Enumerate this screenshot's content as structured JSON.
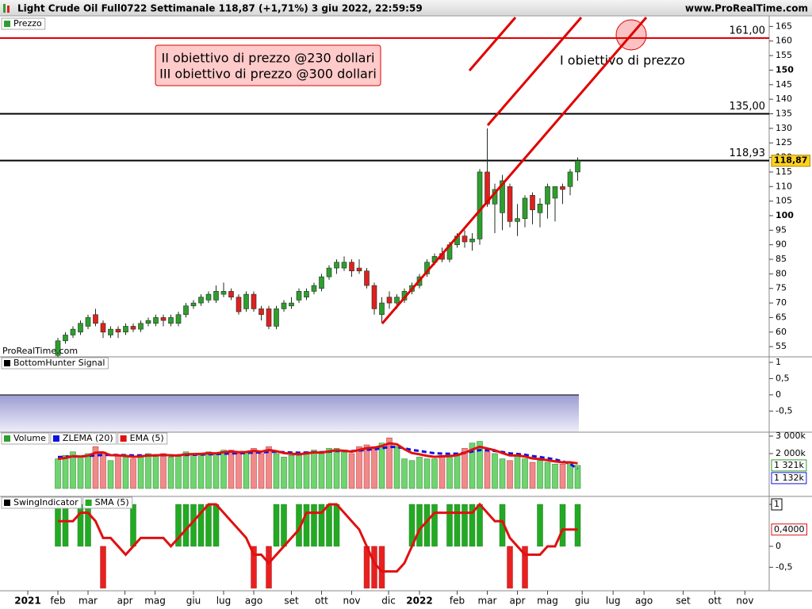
{
  "header": {
    "title": "Light Crude Oil Full0722 Settimanale 118,87 (+1,71%) 3 giu 2022, 22:59:59",
    "site": "www.ProRealTime.com"
  },
  "chart_data": [
    {
      "type": "candlestick",
      "legend": "Prezzo",
      "legend_color": "#2e9e2e",
      "watermark": "ProRealTime.com",
      "up_color": "#2e9e2e",
      "down_color": "#e02020",
      "x": [
        4,
        5,
        6,
        7,
        8,
        9,
        10,
        11,
        12,
        13,
        14,
        15,
        16,
        17,
        18,
        19,
        20,
        21,
        22,
        23,
        24,
        25,
        26,
        27,
        28,
        29,
        30,
        31,
        32,
        33,
        34,
        35,
        36,
        37,
        38,
        39,
        40,
        41,
        42,
        43,
        44,
        45,
        46,
        47,
        48,
        49,
        50,
        51,
        52,
        53,
        54,
        55,
        56,
        57,
        58,
        59,
        60,
        61,
        62,
        63,
        64,
        65,
        66,
        67,
        68,
        69,
        70,
        71,
        72,
        73
      ],
      "open": [
        52,
        57,
        59,
        60,
        62,
        66,
        63,
        59,
        61,
        60,
        62,
        61,
        63,
        63,
        65,
        63,
        63,
        66,
        69,
        70,
        71,
        71,
        73,
        74,
        72,
        68,
        73,
        68,
        68,
        62,
        68,
        69,
        71,
        72,
        74,
        75,
        79,
        82,
        82,
        84,
        82,
        81,
        76,
        66,
        72,
        70,
        71,
        74,
        76,
        80,
        84,
        87,
        85,
        90,
        93,
        91,
        92,
        115,
        104,
        101,
        110,
        98,
        99,
        107,
        101,
        104,
        106,
        110,
        110,
        115
      ],
      "high": [
        58,
        60,
        62,
        64,
        66,
        68,
        64,
        62,
        62,
        63,
        63,
        64,
        65,
        66,
        66,
        66,
        67,
        70,
        71,
        73,
        74,
        76,
        77,
        75,
        73,
        74,
        74,
        69,
        69,
        69,
        71,
        72,
        75,
        75,
        77,
        80,
        83,
        85,
        86,
        85,
        85,
        82,
        77,
        72,
        74,
        73,
        75,
        77,
        80,
        85,
        87,
        89,
        91,
        94,
        95,
        94,
        116,
        130,
        111,
        114,
        111,
        104,
        107,
        108,
        106,
        111,
        110,
        111,
        116,
        120
      ],
      "low": [
        51,
        56,
        58,
        59,
        61,
        62,
        58,
        58,
        58,
        59,
        60,
        60,
        62,
        62,
        62,
        62,
        62,
        65,
        68,
        69,
        70,
        70,
        72,
        71,
        66,
        67,
        67,
        64,
        61,
        61,
        67,
        68,
        70,
        71,
        73,
        74,
        78,
        80,
        81,
        79,
        80,
        75,
        66,
        63,
        68,
        68,
        70,
        73,
        75,
        79,
        83,
        84,
        84,
        89,
        89,
        88,
        90,
        103,
        94,
        95,
        96,
        93,
        96,
        97,
        96,
        99,
        98,
        104,
        107,
        112
      ],
      "close": [
        57,
        59,
        61,
        63,
        65,
        63,
        60,
        61,
        60,
        62,
        61,
        63,
        64,
        65,
        64,
        65,
        66,
        69,
        70,
        72,
        73,
        74,
        74,
        72,
        67,
        73,
        68,
        66,
        62,
        68,
        70,
        70,
        74,
        74,
        76,
        79,
        82,
        84,
        84,
        81,
        81,
        76,
        68,
        70,
        70,
        72,
        74,
        76,
        79,
        84,
        86,
        85,
        90,
        93,
        91,
        92,
        115,
        104,
        109,
        112,
        98,
        99,
        106,
        102,
        104,
        110,
        110,
        109,
        115,
        118.87
      ],
      "last": {
        "value": 118.87,
        "label": "118,87"
      },
      "levels": [
        {
          "value": 161,
          "label": "161,00",
          "color": "#e00000"
        },
        {
          "value": 135,
          "label": "135,00",
          "color": "#000000"
        },
        {
          "value": 118.93,
          "label": "118,93",
          "color": "#000000"
        }
      ],
      "annotations": [
        "II obiettivo di prezzo @230 dollari",
        "III obiettivo di prezzo @300 dollari",
        "I obiettivo di prezzo"
      ],
      "xlim": [
        -3.684,
        98.42
      ],
      "ylim": [
        51.5,
        168.1
      ],
      "yticks": [
        55,
        60,
        65,
        70,
        75,
        80,
        85,
        90,
        95,
        100,
        105,
        110,
        115,
        120,
        125,
        130,
        135,
        140,
        145,
        150,
        155,
        160,
        165
      ],
      "major_ticks": [
        100,
        150
      ]
    },
    {
      "type": "area",
      "legend": "BottomHunter Signal",
      "legend_color": "#000000",
      "xlim": [
        -3.684,
        98.42
      ],
      "ylim": [
        -1.15,
        1.17
      ],
      "yticks": [
        1,
        {
          "value": 0.5,
          "label": "0,5"
        },
        0,
        {
          "value": -0.5,
          "label": "-0,5"
        }
      ]
    },
    {
      "type": "bar",
      "xlim": [
        -3.684,
        98.42
      ],
      "ylim": [
        -455,
        3227
      ],
      "x": [
        4,
        5,
        6,
        7,
        8,
        9,
        10,
        11,
        12,
        13,
        14,
        15,
        16,
        17,
        18,
        19,
        20,
        21,
        22,
        23,
        24,
        25,
        26,
        27,
        28,
        29,
        30,
        31,
        32,
        33,
        34,
        35,
        36,
        37,
        38,
        39,
        40,
        41,
        42,
        43,
        44,
        45,
        46,
        47,
        48,
        49,
        50,
        51,
        52,
        53,
        54,
        55,
        56,
        57,
        58,
        59,
        60,
        61,
        62,
        63,
        64,
        65,
        66,
        67,
        68,
        69,
        70,
        71,
        72,
        73
      ],
      "yticks": [
        {
          "value": 3000,
          "label": "3 000k"
        },
        {
          "value": 2000,
          "label": "2 000k"
        }
      ],
      "series": [
        {
          "name": "Volume",
          "kind": "bar",
          "up_color": "#6fd46f",
          "down_color": "#f08a8a",
          "values": [
            1700,
            1900,
            2100,
            1800,
            2000,
            2400,
            2100,
            1600,
            1900,
            1800,
            1700,
            1900,
            2000,
            1900,
            2000,
            1800,
            1900,
            2100,
            2000,
            2000,
            2100,
            2000,
            2200,
            2200,
            2000,
            2100,
            2300,
            2000,
            2400,
            2000,
            1800,
            1900,
            1900,
            2100,
            2200,
            2000,
            2300,
            2300,
            2100,
            2000,
            2400,
            2500,
            2400,
            2600,
            2900,
            2400,
            1700,
            1600,
            1800,
            1700,
            1700,
            1900,
            1900,
            2000,
            2300,
            2600,
            2700,
            2100,
            2000,
            1700,
            1600,
            1900,
            1700,
            1500,
            1600,
            1500,
            1400,
            1400,
            1500,
            1321
          ],
          "last": {
            "value": 1321,
            "label": "1 321k"
          },
          "color": "#2e9e2e"
        },
        {
          "name": "ZLEMA (20)",
          "kind": "line",
          "dashed": true,
          "color": "#1010e0",
          "values": [
            1800,
            1810,
            1830,
            1840,
            1860,
            1900,
            1920,
            1920,
            1920,
            1910,
            1900,
            1900,
            1900,
            1900,
            1910,
            1900,
            1900,
            1920,
            1930,
            1940,
            1960,
            1970,
            1990,
            2010,
            2020,
            2030,
            2060,
            2060,
            2100,
            2100,
            2080,
            2060,
            2050,
            2060,
            2080,
            2080,
            2110,
            2150,
            2150,
            2140,
            2170,
            2220,
            2250,
            2300,
            2380,
            2380,
            2300,
            2210,
            2150,
            2080,
            2020,
            2000,
            1990,
            2000,
            2040,
            2120,
            2200,
            2190,
            2150,
            2090,
            2010,
            1980,
            1930,
            1860,
            1800,
            1740,
            1660,
            1560,
            1400,
            1132
          ],
          "last": {
            "value": 1132,
            "label": "1 132k"
          }
        },
        {
          "name": "EMA (5)",
          "kind": "line",
          "dashed": false,
          "color": "#e01010",
          "values": [
            1700,
            1750,
            1850,
            1830,
            1880,
            2050,
            2070,
            1910,
            1900,
            1870,
            1810,
            1840,
            1890,
            1890,
            1930,
            1890,
            1890,
            1960,
            1970,
            1980,
            2020,
            2010,
            2080,
            2120,
            2080,
            2090,
            2160,
            2110,
            2210,
            2140,
            2030,
            1990,
            1960,
            2010,
            2070,
            2050,
            2130,
            2190,
            2160,
            2110,
            2210,
            2310,
            2340,
            2430,
            2590,
            2530,
            2250,
            2030,
            1960,
            1870,
            1810,
            1840,
            1860,
            1910,
            2040,
            2230,
            2390,
            2290,
            2190,
            2030,
            1890,
            1890,
            1830,
            1720,
            1680,
            1620,
            1550,
            1500,
            1500,
            1440
          ]
        }
      ]
    },
    {
      "type": "bar",
      "xlim": [
        -3.684,
        98.42
      ],
      "ylim": [
        -1.06,
        1.19
      ],
      "x": [
        4,
        5,
        6,
        7,
        8,
        9,
        10,
        11,
        12,
        13,
        14,
        15,
        16,
        17,
        18,
        19,
        20,
        21,
        22,
        23,
        24,
        25,
        26,
        27,
        28,
        29,
        30,
        31,
        32,
        33,
        34,
        35,
        36,
        37,
        38,
        39,
        40,
        41,
        42,
        43,
        44,
        45,
        46,
        47,
        48,
        49,
        50,
        51,
        52,
        53,
        54,
        55,
        56,
        57,
        58,
        59,
        60,
        61,
        62,
        63,
        64,
        65,
        66,
        67,
        68,
        69,
        70,
        71,
        72,
        73
      ],
      "yticks": [
        1,
        0,
        {
          "value": -0.5,
          "label": "-0,5"
        }
      ],
      "xticks": [
        {
          "value": 0,
          "label": "2021"
        },
        {
          "value": 4,
          "label": "feb"
        },
        {
          "value": 8,
          "label": "mar"
        },
        {
          "value": 12.9,
          "label": "apr"
        },
        {
          "value": 16.9,
          "label": "mag"
        },
        {
          "value": 22,
          "label": "giu"
        },
        {
          "value": 26,
          "label": "lug"
        },
        {
          "value": 30,
          "label": "ago"
        },
        {
          "value": 35,
          "label": "set"
        },
        {
          "value": 39,
          "label": "ott"
        },
        {
          "value": 43,
          "label": "nov"
        },
        {
          "value": 47.9,
          "label": "dic"
        },
        {
          "value": 52,
          "label": "2022"
        },
        {
          "value": 57,
          "label": "feb"
        },
        {
          "value": 61,
          "label": "mar"
        },
        {
          "value": 65,
          "label": "apr"
        },
        {
          "value": 69,
          "label": "mag"
        },
        {
          "value": 73.6,
          "label": "giu"
        },
        {
          "value": 77.7,
          "label": "lug"
        },
        {
          "value": 81.8,
          "label": "ago"
        },
        {
          "value": 87,
          "label": "set"
        },
        {
          "value": 91.2,
          "label": "ott"
        },
        {
          "value": 95.2,
          "label": "nov"
        }
      ],
      "series": [
        {
          "name": "SwingIndicator",
          "kind": "bar",
          "up_color": "#22aa22",
          "down_color": "#e82020",
          "color": "#000000",
          "values": [
            1,
            1,
            0,
            1,
            1,
            0,
            -1,
            0,
            0,
            0,
            1,
            0,
            0,
            0,
            0,
            0,
            1,
            1,
            1,
            1,
            1,
            1,
            0,
            0,
            0,
            0,
            -1,
            0,
            -1,
            1,
            1,
            0,
            1,
            1,
            1,
            1,
            1,
            1,
            0,
            0,
            0,
            -1,
            -1,
            -1,
            0,
            0,
            0,
            1,
            1,
            1,
            1,
            0,
            1,
            1,
            1,
            1,
            1,
            0,
            0,
            1,
            -1,
            0,
            -1,
            0,
            1,
            0,
            0,
            1,
            0,
            1
          ],
          "last": {
            "value": 1,
            "label": "1"
          }
        },
        {
          "name": "SMA (5)",
          "kind": "line",
          "dashed": false,
          "color": "#e01010",
          "color2": "#22aa22",
          "values": [
            0.6,
            0.6,
            0.6,
            0.8,
            0.8,
            0.6,
            0.2,
            0.2,
            0,
            -0.2,
            0,
            0.2,
            0.2,
            0.2,
            0.2,
            0,
            0.2,
            0.4,
            0.6,
            0.8,
            1,
            1,
            0.8,
            0.6,
            0.4,
            0.2,
            -0.2,
            -0.2,
            -0.4,
            -0.2,
            0,
            0.2,
            0.4,
            0.8,
            0.8,
            0.8,
            1,
            1,
            0.8,
            0.6,
            0.4,
            0,
            -0.4,
            -0.6,
            -0.6,
            -0.6,
            -0.4,
            0,
            0.4,
            0.6,
            0.8,
            0.8,
            0.8,
            0.8,
            0.8,
            0.8,
            1,
            0.8,
            0.6,
            0.6,
            0.2,
            0,
            -0.2,
            -0.2,
            -0.2,
            0,
            0,
            0.4,
            0.4,
            0.4
          ],
          "last": {
            "value": 0.4,
            "label": "0,4000"
          }
        }
      ]
    }
  ]
}
